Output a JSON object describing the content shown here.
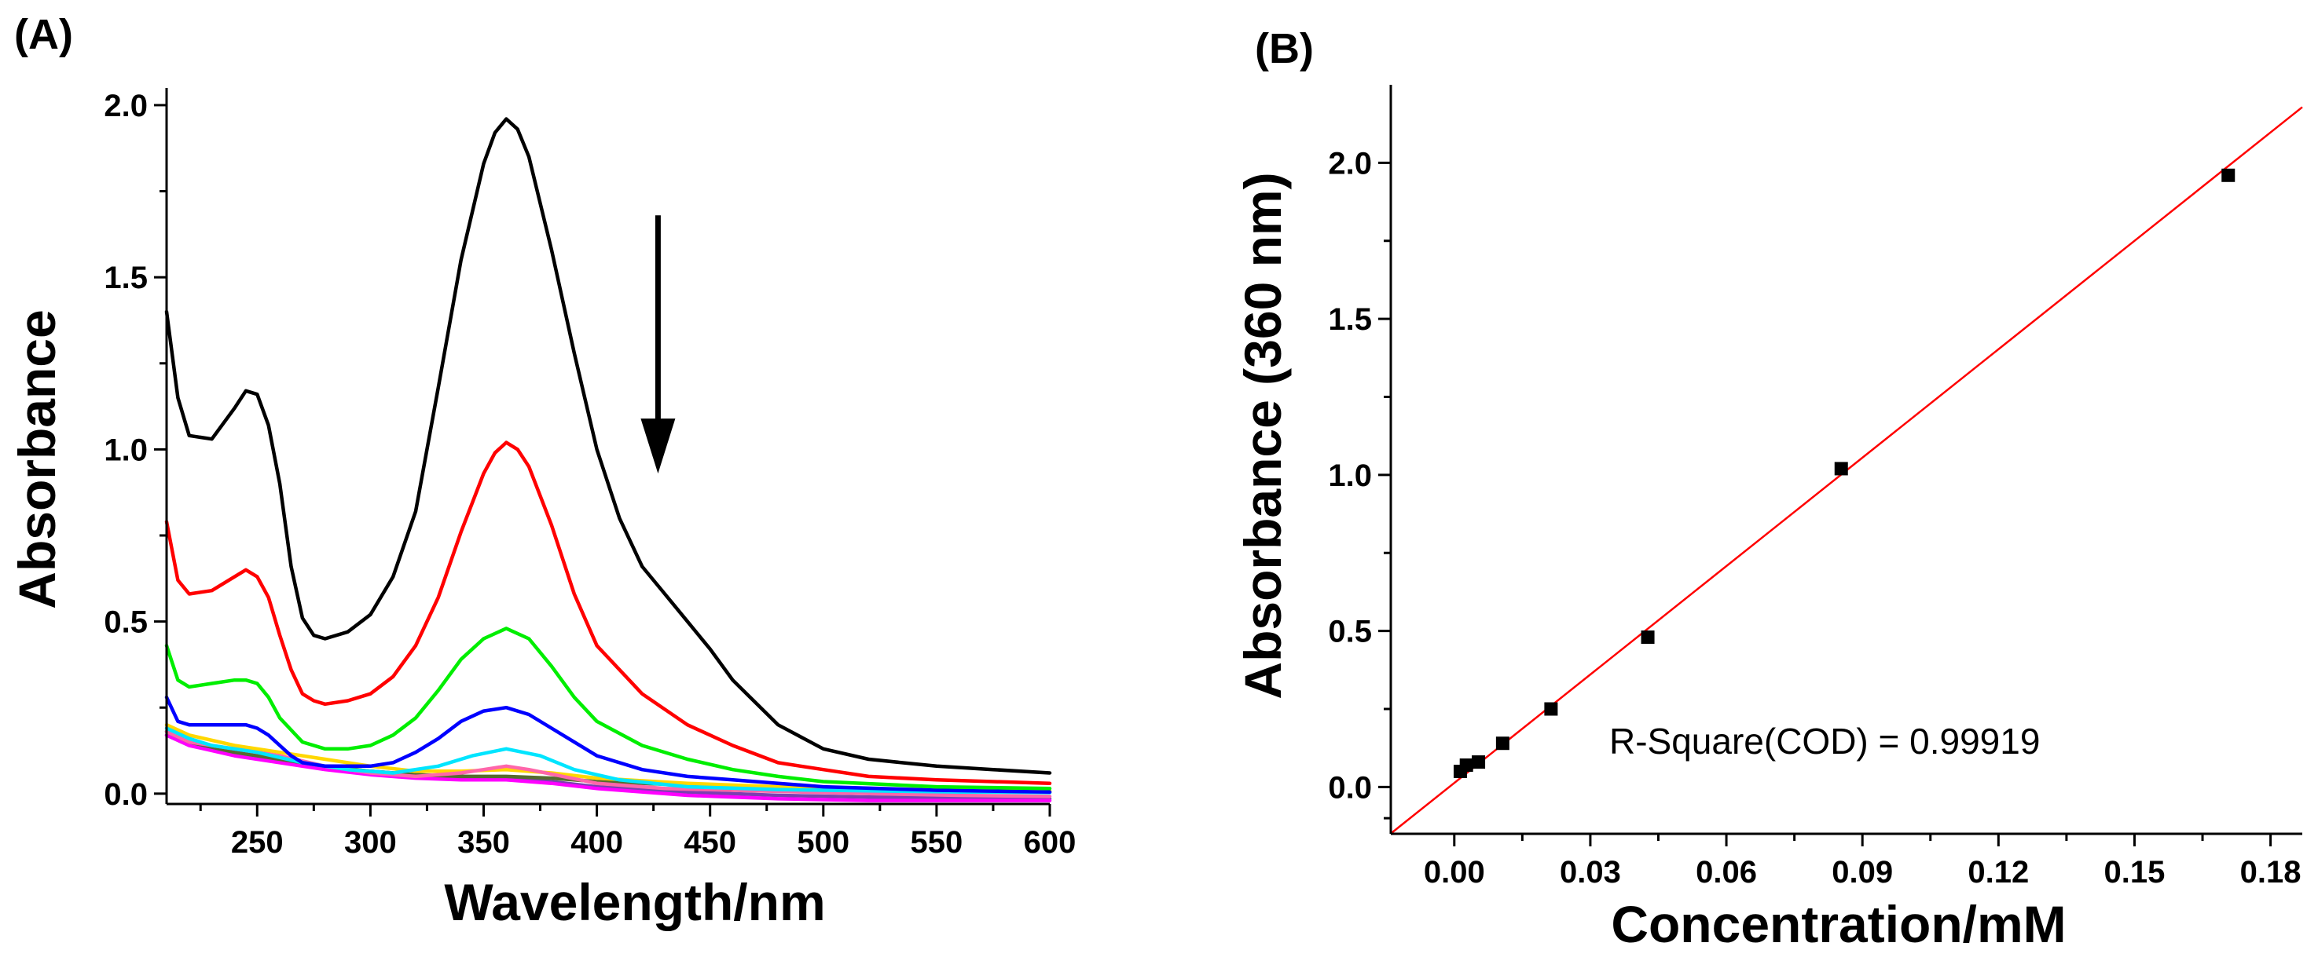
{
  "colors": {
    "axis": "#000000",
    "arrow": "#000000",
    "fit_line": "#ff0000",
    "points": "#000000"
  },
  "chart_data": [
    {
      "id": "A",
      "panel_label": "(A)",
      "type": "line",
      "title": "",
      "xlabel": "Wavelength/nm",
      "ylabel": "Absorbance",
      "xlim": [
        210,
        600
      ],
      "ylim": [
        -0.03,
        2.05
      ],
      "xticks": [
        250,
        300,
        350,
        400,
        450,
        500,
        550,
        600
      ],
      "xtick_labels": [
        "250",
        "300",
        "350",
        "400",
        "450",
        "500",
        "550",
        "600"
      ],
      "yticks": [
        0.0,
        0.5,
        1.0,
        1.5,
        2.0
      ],
      "ytick_labels": [
        "0.0",
        "0.5",
        "1.0",
        "1.5",
        "2.0"
      ],
      "grid": false,
      "legend": "none",
      "annotations": [
        {
          "type": "arrow",
          "direction": "down",
          "x": 427,
          "y_start": 1.68,
          "y_end": 0.93
        }
      ],
      "series": [
        {
          "name": "1",
          "color": "#000000",
          "x": [
            210,
            215,
            220,
            230,
            240,
            245,
            250,
            255,
            260,
            265,
            270,
            275,
            280,
            290,
            300,
            310,
            320,
            330,
            340,
            350,
            355,
            360,
            365,
            370,
            380,
            390,
            400,
            410,
            420,
            430,
            440,
            450,
            460,
            480,
            500,
            520,
            550,
            575,
            600
          ],
          "y": [
            1.4,
            1.15,
            1.04,
            1.03,
            1.12,
            1.17,
            1.16,
            1.07,
            0.9,
            0.66,
            0.51,
            0.46,
            0.45,
            0.47,
            0.52,
            0.63,
            0.82,
            1.18,
            1.55,
            1.83,
            1.92,
            1.96,
            1.93,
            1.85,
            1.58,
            1.28,
            1.0,
            0.8,
            0.66,
            0.58,
            0.5,
            0.42,
            0.33,
            0.2,
            0.13,
            0.1,
            0.08,
            0.07,
            0.06
          ]
        },
        {
          "name": "2",
          "color": "#ff0000",
          "x": [
            210,
            215,
            220,
            230,
            240,
            245,
            250,
            255,
            260,
            265,
            270,
            275,
            280,
            290,
            300,
            310,
            320,
            330,
            340,
            350,
            355,
            360,
            365,
            370,
            380,
            390,
            400,
            420,
            440,
            460,
            480,
            500,
            520,
            550,
            575,
            600
          ],
          "y": [
            0.79,
            0.62,
            0.58,
            0.59,
            0.63,
            0.65,
            0.63,
            0.57,
            0.46,
            0.36,
            0.29,
            0.27,
            0.26,
            0.27,
            0.29,
            0.34,
            0.43,
            0.57,
            0.76,
            0.93,
            0.99,
            1.02,
            1.0,
            0.95,
            0.78,
            0.58,
            0.43,
            0.29,
            0.2,
            0.14,
            0.09,
            0.07,
            0.05,
            0.04,
            0.035,
            0.03
          ]
        },
        {
          "name": "3",
          "color": "#00ee00",
          "x": [
            210,
            215,
            220,
            230,
            240,
            245,
            250,
            255,
            260,
            270,
            280,
            290,
            300,
            310,
            320,
            330,
            340,
            350,
            360,
            370,
            380,
            390,
            400,
            420,
            440,
            460,
            480,
            500,
            550,
            600
          ],
          "y": [
            0.43,
            0.33,
            0.31,
            0.32,
            0.33,
            0.33,
            0.32,
            0.28,
            0.22,
            0.15,
            0.13,
            0.13,
            0.14,
            0.17,
            0.22,
            0.3,
            0.39,
            0.45,
            0.48,
            0.45,
            0.37,
            0.28,
            0.21,
            0.14,
            0.1,
            0.07,
            0.05,
            0.035,
            0.02,
            0.015
          ]
        },
        {
          "name": "4",
          "color": "#0000ff",
          "x": [
            210,
            215,
            220,
            230,
            240,
            245,
            250,
            255,
            260,
            265,
            270,
            280,
            290,
            300,
            310,
            320,
            330,
            340,
            350,
            360,
            370,
            380,
            390,
            400,
            420,
            440,
            460,
            480,
            500,
            550,
            600
          ],
          "y": [
            0.28,
            0.21,
            0.2,
            0.2,
            0.2,
            0.2,
            0.19,
            0.17,
            0.14,
            0.11,
            0.09,
            0.08,
            0.08,
            0.08,
            0.09,
            0.12,
            0.16,
            0.21,
            0.24,
            0.25,
            0.23,
            0.19,
            0.15,
            0.11,
            0.07,
            0.05,
            0.04,
            0.03,
            0.02,
            0.01,
            0.005
          ]
        },
        {
          "name": "5",
          "color": "#00e5ff",
          "x": [
            210,
            220,
            230,
            250,
            270,
            290,
            310,
            330,
            345,
            360,
            375,
            390,
            410,
            440,
            480,
            520,
            560,
            600
          ],
          "y": [
            0.19,
            0.16,
            0.14,
            0.12,
            0.09,
            0.07,
            0.06,
            0.08,
            0.11,
            0.13,
            0.11,
            0.07,
            0.04,
            0.02,
            0.012,
            0.008,
            0.005,
            0.003
          ]
        },
        {
          "name": "6",
          "color": "#ff66aa",
          "x": [
            210,
            220,
            240,
            260,
            280,
            300,
            320,
            340,
            350,
            360,
            370,
            385,
            400,
            430,
            470,
            520,
            560,
            600
          ],
          "y": [
            0.18,
            0.15,
            0.13,
            0.11,
            0.08,
            0.06,
            0.05,
            0.06,
            0.07,
            0.08,
            0.07,
            0.05,
            0.03,
            0.015,
            0.008,
            0.0,
            -0.005,
            -0.008
          ]
        },
        {
          "name": "7",
          "color": "#ffd700",
          "x": [
            210,
            220,
            240,
            260,
            280,
            300,
            320,
            340,
            360,
            380,
            400,
            440,
            480,
            520,
            560,
            600
          ],
          "y": [
            0.2,
            0.17,
            0.14,
            0.12,
            0.1,
            0.08,
            0.065,
            0.065,
            0.07,
            0.06,
            0.045,
            0.03,
            0.02,
            0.015,
            0.01,
            0.008
          ]
        },
        {
          "name": "8",
          "color": "#556b2f",
          "x": [
            210,
            220,
            240,
            260,
            280,
            300,
            320,
            340,
            360,
            380,
            400,
            440,
            480,
            520,
            560,
            600
          ],
          "y": [
            0.18,
            0.15,
            0.12,
            0.1,
            0.08,
            0.065,
            0.055,
            0.05,
            0.05,
            0.045,
            0.035,
            0.025,
            0.015,
            0.01,
            0.006,
            0.004
          ]
        },
        {
          "name": "9",
          "color": "#ff00ff",
          "x": [
            210,
            220,
            240,
            260,
            280,
            300,
            320,
            340,
            360,
            380,
            400,
            440,
            480,
            520,
            560,
            600
          ],
          "y": [
            0.17,
            0.14,
            0.11,
            0.09,
            0.07,
            0.055,
            0.045,
            0.04,
            0.04,
            0.03,
            0.015,
            -0.005,
            -0.015,
            -0.02,
            -0.02,
            -0.02
          ]
        },
        {
          "name": "10",
          "color": "#7b3fb0",
          "x": [
            210,
            220,
            240,
            260,
            280,
            300,
            320,
            340,
            360,
            380,
            400,
            440,
            480,
            520,
            560,
            600
          ],
          "y": [
            0.17,
            0.14,
            0.12,
            0.1,
            0.08,
            0.065,
            0.055,
            0.05,
            0.045,
            0.035,
            0.02,
            0.005,
            -0.005,
            -0.01,
            -0.012,
            -0.015
          ]
        }
      ]
    },
    {
      "id": "B",
      "panel_label": "(B)",
      "type": "scatter",
      "title": "",
      "xlabel": "Concentration/mM",
      "ylabel": "Absorbance (360 nm)",
      "xlim": [
        -0.014,
        0.187
      ],
      "ylim": [
        -0.15,
        2.25
      ],
      "xticks": [
        0.0,
        0.03,
        0.06,
        0.09,
        0.12,
        0.15,
        0.18
      ],
      "xtick_labels": [
        "0.00",
        "0.03",
        "0.06",
        "0.09",
        "0.12",
        "0.15",
        "0.18"
      ],
      "yticks": [
        0.0,
        0.5,
        1.0,
        1.5,
        2.0
      ],
      "ytick_labels": [
        "0.0",
        "0.5",
        "1.0",
        "1.5",
        "2.0"
      ],
      "grid": false,
      "legend": "none",
      "annotation_text": "R-Square(COD) = 0.99919",
      "points": {
        "x": [
          0.00133,
          0.00267,
          0.00533,
          0.01067,
          0.02133,
          0.04267,
          0.08533,
          0.17067
        ],
        "y": [
          0.05,
          0.07,
          0.08,
          0.14,
          0.25,
          0.48,
          1.02,
          1.96
        ]
      },
      "fit": {
        "slope": 11.58,
        "intercept": 0.013,
        "x_range": [
          -0.014,
          0.187
        ],
        "r_squared": 0.99919
      }
    }
  ]
}
